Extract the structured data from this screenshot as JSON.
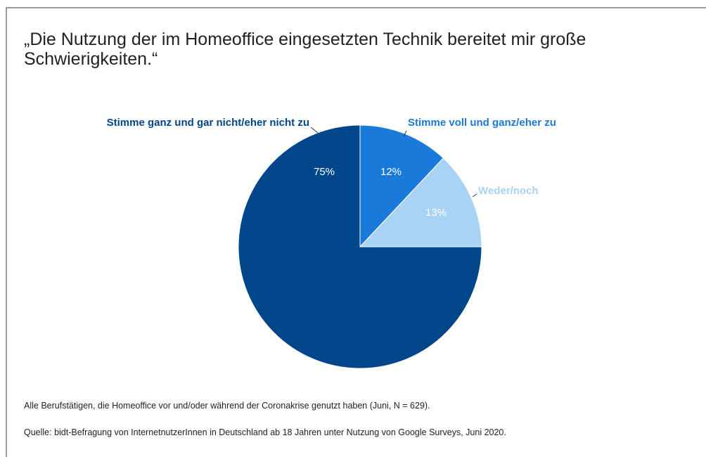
{
  "chart_data": {
    "type": "pie",
    "title": "„Die Nutzung der im Homeoffice eingesetzten Technik bereitet mir große Schwierigkeiten.“",
    "categories": [
      "Stimme voll und ganz/eher zu",
      "Weder/noch",
      "Stimme ganz und gar nicht/eher nicht zu"
    ],
    "values": [
      12,
      13,
      75
    ],
    "value_labels": [
      "12%",
      "13%",
      "75%"
    ],
    "colors": [
      "#1a7ad9",
      "#a9d3f5",
      "#00468b"
    ],
    "notes": [
      "Alle Berufstätigen, die Homeoffice vor und/oder während der Coronakrise genutzt haben (Juni, N = 629).",
      "Quelle: bidt-Befragung von InternetnutzerInnen in Deutschland ab 18 Jahren unter Nutzung von Google Surveys, Juni 2020."
    ]
  }
}
